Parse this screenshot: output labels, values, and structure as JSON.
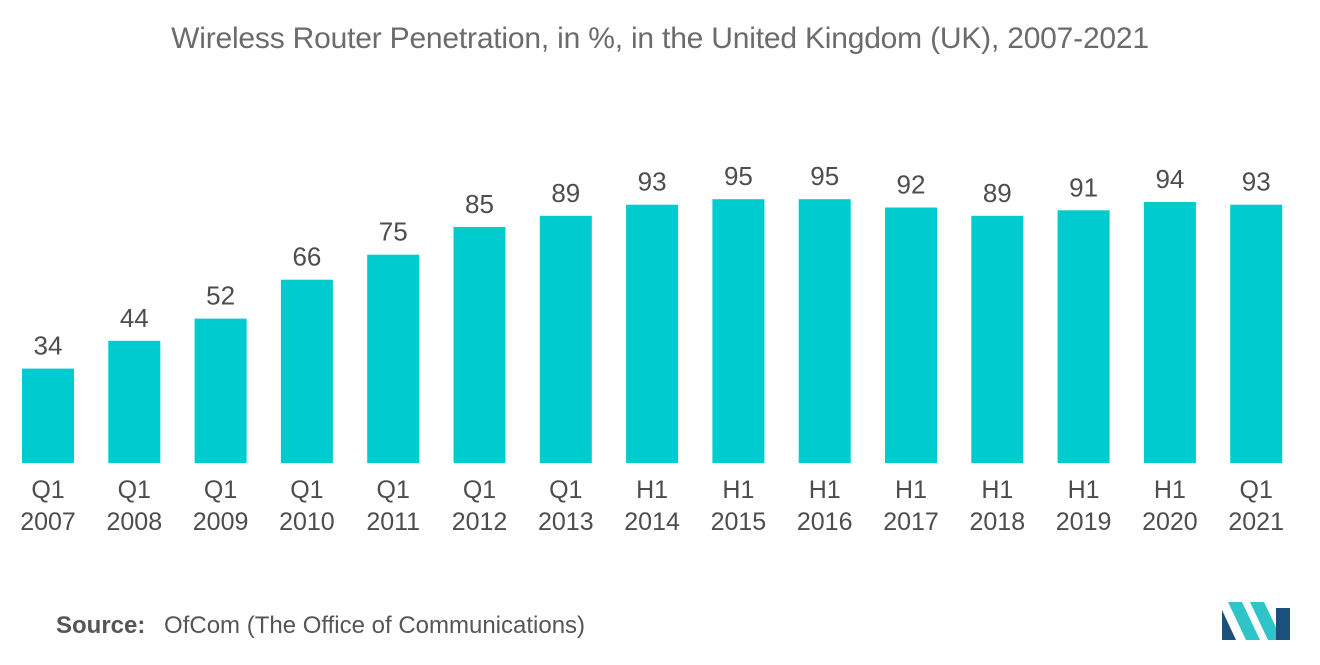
{
  "source": {
    "label": "Source:",
    "text": "OfCom (The Office of Communications)"
  },
  "logo": {
    "icon": "mordor-intelligence-logo-icon"
  },
  "colors": {
    "bar": "#00cccf",
    "text": "#4d4d4d",
    "logo_dark": "#1c4f7a",
    "logo_light": "#2fc4c8"
  },
  "chart_data": {
    "type": "bar",
    "title": "Wireless Router Penetration, in %, in the United Kingdom (UK), 2007-2021",
    "xlabel": "",
    "ylabel": "",
    "categories": [
      [
        "Q1",
        "2007"
      ],
      [
        "Q1",
        "2008"
      ],
      [
        "Q1",
        "2009"
      ],
      [
        "Q1",
        "2010"
      ],
      [
        "Q1",
        "2011"
      ],
      [
        "Q1",
        "2012"
      ],
      [
        "Q1",
        "2013"
      ],
      [
        "H1",
        "2014"
      ],
      [
        "H1",
        "2015"
      ],
      [
        "H1",
        "2016"
      ],
      [
        "H1",
        "2017"
      ],
      [
        "H1",
        "2018"
      ],
      [
        "H1",
        "2019"
      ],
      [
        "H1",
        "2020"
      ],
      [
        "Q1",
        "2021"
      ]
    ],
    "values": [
      34,
      44,
      52,
      66,
      75,
      85,
      89,
      93,
      95,
      95,
      92,
      89,
      91,
      94,
      93
    ],
    "ylim": [
      0,
      100
    ],
    "grid": false,
    "legend": "none",
    "data_labels": true
  }
}
